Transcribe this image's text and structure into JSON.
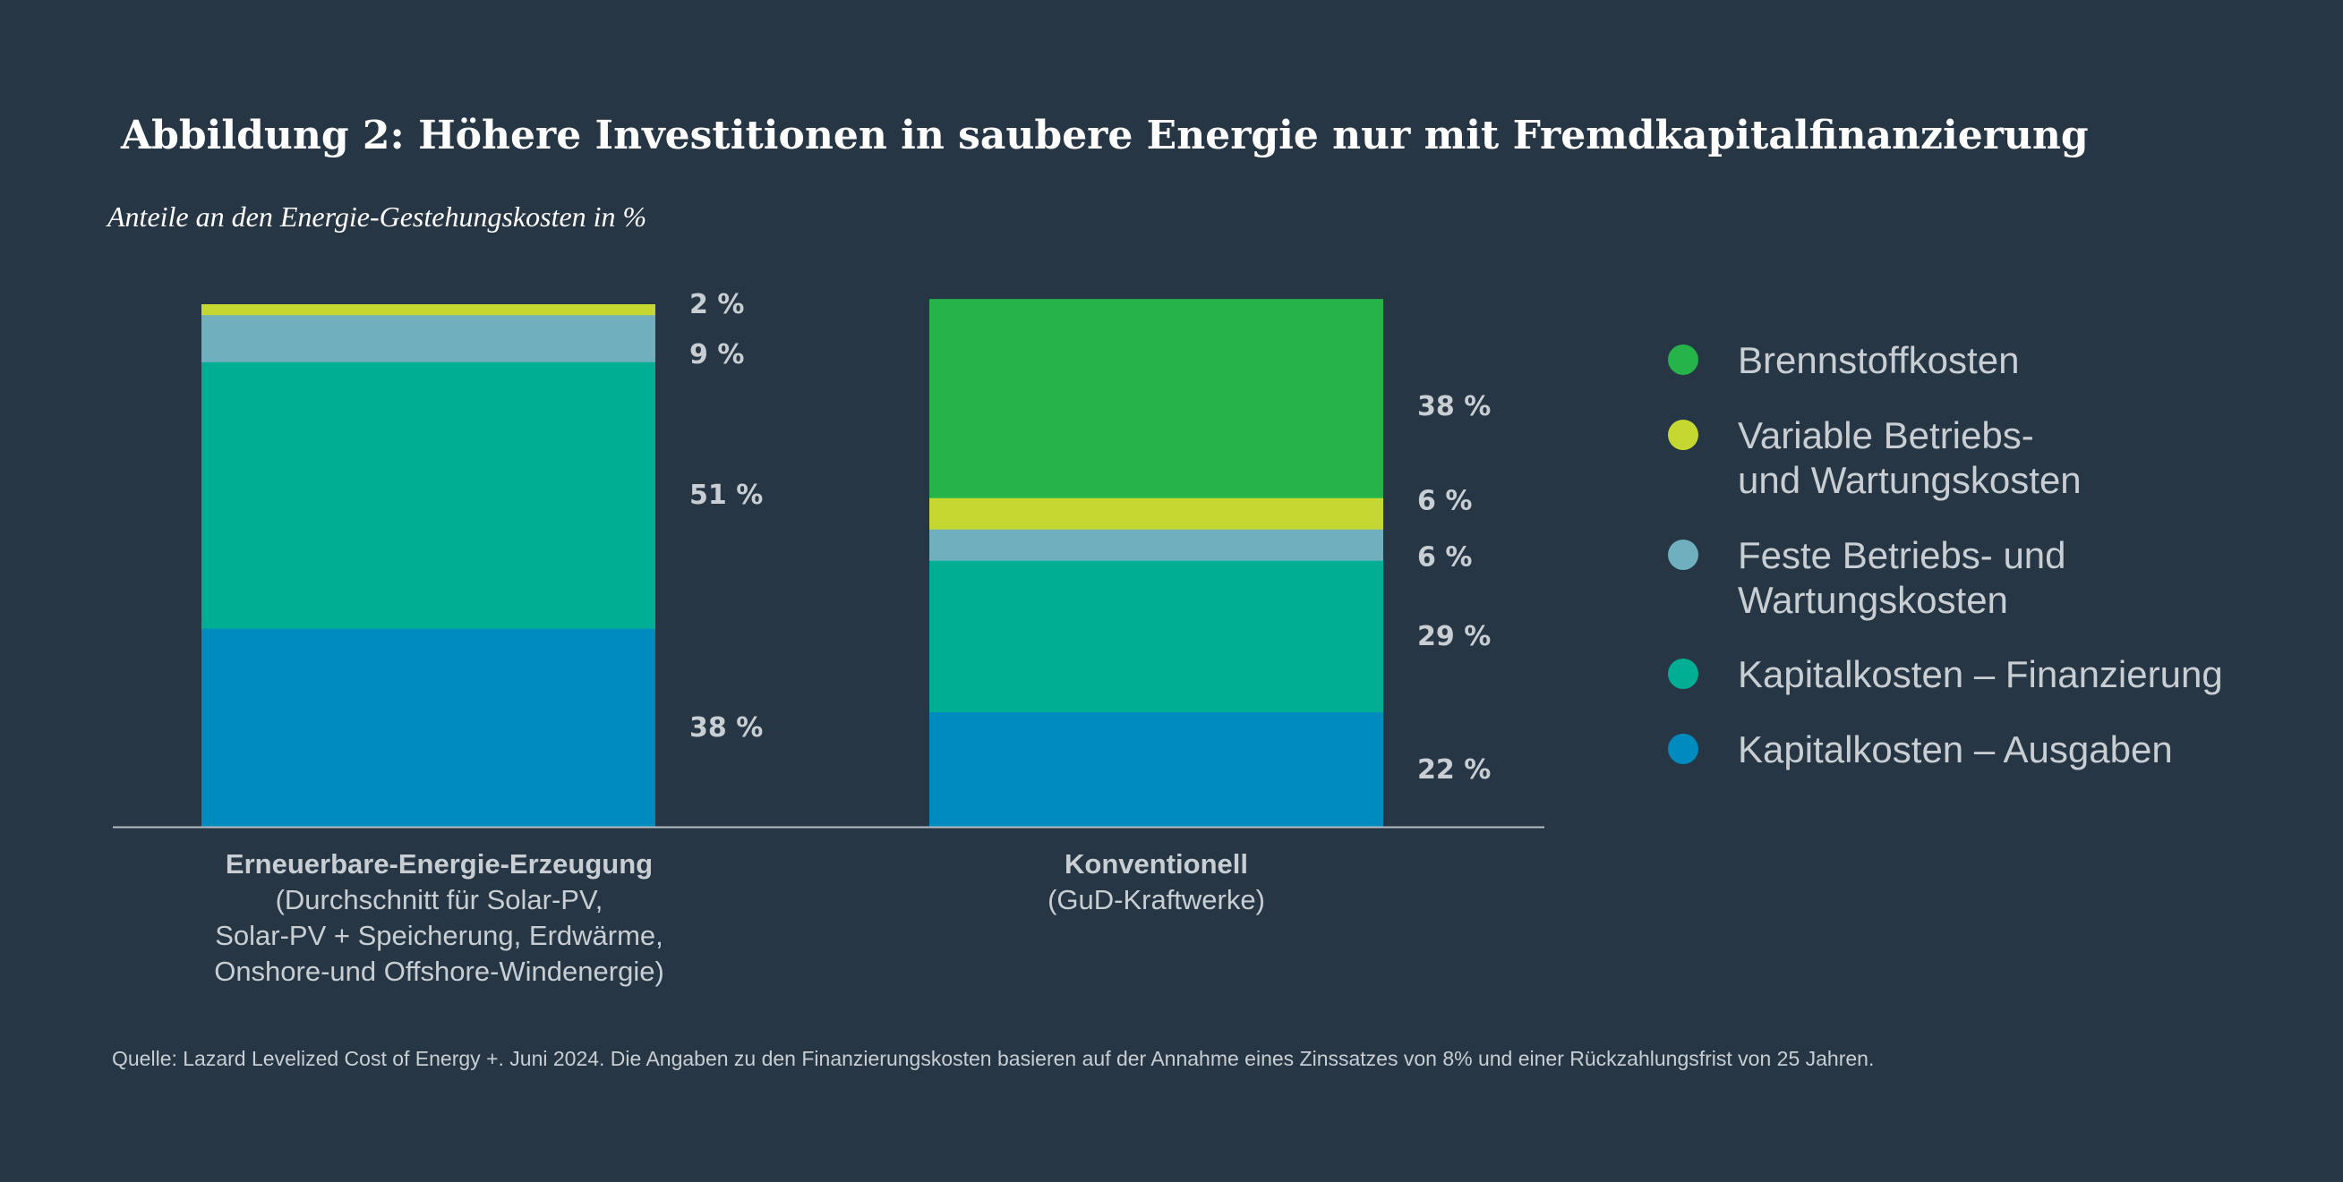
{
  "chart_data": {
    "type": "bar",
    "stacked": true,
    "title": "Abbildung 2: Höhere Investitionen in saubere Energie nur mit Fremdkapitalfinanzierung",
    "subtitle": "Anteile an den Energie-Gestehungskosten in %",
    "unit": " %",
    "ylim": [
      0,
      100
    ],
    "grid": false,
    "legend_position": "right",
    "categories": [
      {
        "title": "Erneuerbare-Energie-Erzeugung",
        "subtitle": [
          "(Durchschnitt für Solar-PV,",
          "Solar-PV + Speicherung, Erdwärme,",
          "Onshore-und Offshore-Windenergie)"
        ]
      },
      {
        "title": "Konventionell",
        "subtitle": [
          "(GuD-Kraftwerke)"
        ]
      }
    ],
    "series": [
      {
        "name": "Kapitalkosten – Ausgaben",
        "color": "#008bbf",
        "values": [
          38,
          22
        ]
      },
      {
        "name": "Kapitalkosten – Finanzierung",
        "color": "#00ae94",
        "values": [
          51,
          29
        ]
      },
      {
        "name": "Feste Betriebs- und Wartungskosten",
        "color": "#6fafbe",
        "values": [
          9,
          6
        ]
      },
      {
        "name": "Variable Betriebs- und Wartungskosten",
        "color": "#c5d832",
        "values": [
          2,
          6
        ]
      },
      {
        "name": "Brennstoffkosten",
        "color": "#25b34a",
        "values": [
          0,
          38
        ]
      }
    ],
    "legend": [
      {
        "lines": [
          "Brennstoffkosten"
        ],
        "color": "#25b34a"
      },
      {
        "lines": [
          "Variable Betriebs-",
          "und Wartungskosten"
        ],
        "color": "#c5d832"
      },
      {
        "lines": [
          "Feste Betriebs- und",
          "Wartungskosten"
        ],
        "color": "#6fafbe"
      },
      {
        "lines": [
          "Kapitalkosten – Finanzierung"
        ],
        "color": "#00ae94"
      },
      {
        "lines": [
          "Kapitalkosten – Ausgaben"
        ],
        "color": "#008bbf"
      }
    ],
    "source": "Quelle: Lazard Levelized Cost of Energy +. Juni 2024. Die Angaben zu den Finanzierungskosten basieren auf der Annahme eines Zinssatzes von 8% und einer Rückzahlungsfrist von 25 Jahren."
  }
}
